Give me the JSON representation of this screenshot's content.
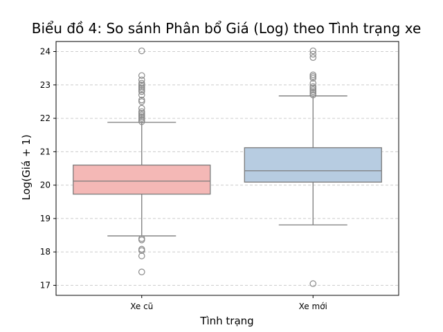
{
  "chart_data": {
    "type": "box",
    "title": "Biểu đồ 4: So sánh Phân bổ Giá (Log) theo Tình trạng xe",
    "xlabel": "Tình trạng",
    "ylabel": "Log(Giá + 1)",
    "ylim": [
      16.7,
      24.3
    ],
    "yticks": [
      17,
      18,
      19,
      20,
      21,
      22,
      23,
      24
    ],
    "grid": "y-dashed",
    "categories": [
      "Xe cũ",
      "Xe mới"
    ],
    "colors": {
      "box_fill": [
        "#f4b8b6",
        "#b7cce1"
      ],
      "box_edge": "#7a7a7a"
    },
    "boxes": [
      {
        "category": "Xe cũ",
        "whisker_low": 18.48,
        "q1": 19.73,
        "median": 20.12,
        "q3": 20.6,
        "whisker_high": 21.88,
        "outliers": [
          17.4,
          17.88,
          18.04,
          18.08,
          18.36,
          18.4,
          21.9,
          21.95,
          22.0,
          22.05,
          22.1,
          22.15,
          22.2,
          22.3,
          22.5,
          22.55,
          22.7,
          22.8,
          22.85,
          22.9,
          22.95,
          23.0,
          23.05,
          23.15,
          23.28,
          24.02
        ]
      },
      {
        "category": "Xe mới",
        "whisker_low": 18.81,
        "q1": 20.09,
        "median": 20.43,
        "q3": 21.12,
        "whisker_high": 22.67,
        "outliers": [
          17.05,
          22.7,
          22.75,
          22.8,
          22.85,
          22.9,
          22.95,
          23.05,
          23.2,
          23.25,
          23.3,
          23.82,
          23.92,
          24.02
        ]
      }
    ]
  }
}
